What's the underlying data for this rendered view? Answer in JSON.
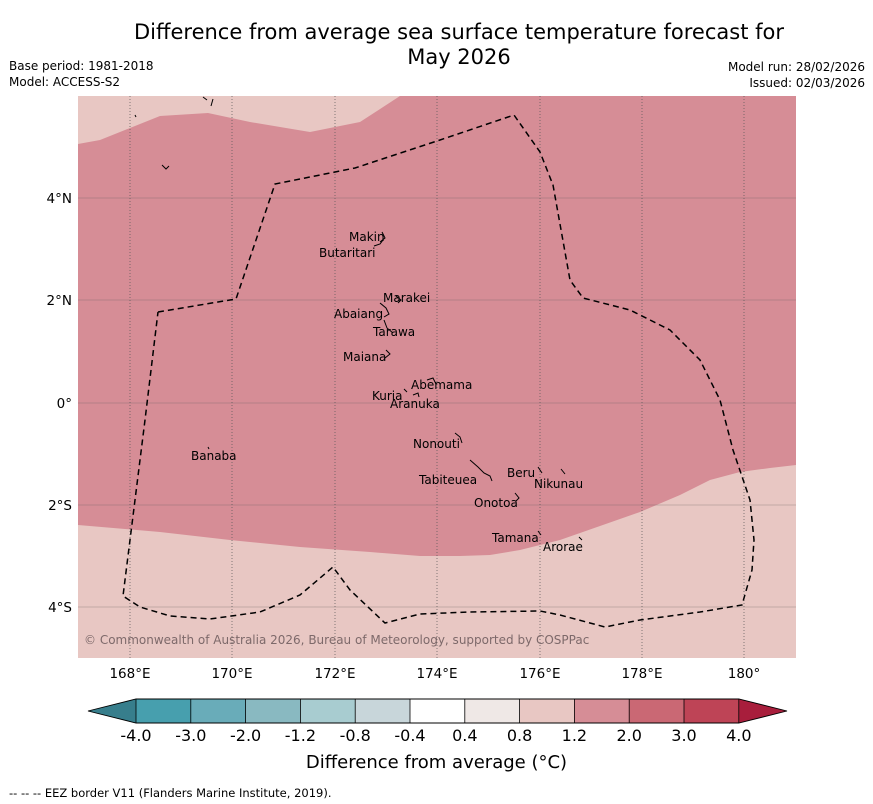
{
  "header": {
    "title_line1": "Difference from average sea surface temperature forecast for",
    "title_line2": "May 2026",
    "base_period": "Base period: 1981-2018",
    "model": "Model: ACCESS-S2",
    "model_run": "Model run: 28/02/2026",
    "issued": "Issued: 02/03/2026"
  },
  "map": {
    "lat_labels": [
      "4°N",
      "2°N",
      "0°",
      "2°S",
      "4°S"
    ],
    "lon_labels": [
      "168°E",
      "170°E",
      "172°E",
      "174°E",
      "176°E",
      "178°E",
      "180°"
    ],
    "copyright": "© Commonwealth of Australia 2026, Bureau of Meteorology, supported by COSPPac",
    "place_labels": [
      "Makin",
      "Butaritari",
      "Marakei",
      "Abaiang",
      "Tarawa",
      "Maiana",
      "Abemama",
      "Kuria",
      "Aranuka",
      "Nonouti",
      "Banaba",
      "Tabiteuea",
      "Beru",
      "Nikunau",
      "Onotoa",
      "Tamana",
      "Arorae"
    ],
    "fill_colors": {
      "band_1_2_to_2_0": "#d68d96",
      "band_0_8_to_1_2": "#e8c7c3"
    }
  },
  "colorbar": {
    "tick_labels": [
      "-4.0",
      "-3.0",
      "-2.0",
      "-1.2",
      "-0.8",
      "-0.4",
      "0.4",
      "0.8",
      "1.2",
      "2.0",
      "3.0",
      "4.0"
    ],
    "colors": [
      "#377e8c",
      "#479fae",
      "#69acb9",
      "#89b9c1",
      "#a8ccd0",
      "#c8d6da",
      "#ffffff",
      "#efe8e6",
      "#e8c7c3",
      "#d68d96",
      "#ca6874",
      "#be4456",
      "#a81e3c"
    ],
    "title": "Difference from average (°C)"
  },
  "footer": {
    "eez_legend": "--  --  -- EEZ border V11 (Flanders Marine Institute, 2019)."
  }
}
